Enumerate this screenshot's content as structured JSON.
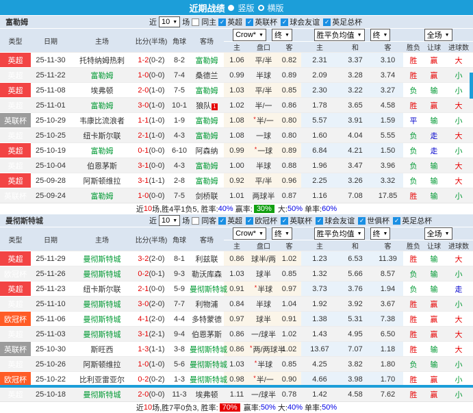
{
  "title_bar": {
    "title": "近期战绩",
    "radio_vertical": "竖版",
    "radio_horizontal": "横版"
  },
  "filter": {
    "near": "近",
    "count": "10",
    "games_label": "场"
  },
  "dropdowns": {
    "company": "Crow*",
    "asia_period": "终",
    "euro_avg": "胜平负均值",
    "euro_period": "终",
    "scope": "全场"
  },
  "columns": {
    "type": "类型",
    "date": "日期",
    "home": "主场",
    "score": "比分(半场)",
    "corner": "角球",
    "away": "客场",
    "asia_home": "主",
    "asia_line": "盘口",
    "asia_away": "客",
    "euro_home": "主",
    "euro_draw": "和",
    "euro_away": "客",
    "res_wl": "胜负",
    "res_let": "让球",
    "res_goal": "进球数"
  },
  "sections": [
    {
      "team": "富勒姆",
      "same_label": "同主",
      "leagues": [
        "英超",
        "英联杯",
        "球会友谊",
        "英足总杯"
      ],
      "rows": [
        {
          "type": "英超",
          "tc": "t-red",
          "date": "25-11-30",
          "home": "托特纳姆热刺",
          "hs": false,
          "score": "1-2",
          "half": "(0-2)",
          "corner": "8-2",
          "away": "富勒姆",
          "as": true,
          "badge": "",
          "ah": "1.06",
          "star": false,
          "line": "平/半",
          "aa": "0.82",
          "eh": "2.31",
          "ed": "3.37",
          "ea": "3.10",
          "w": [
            "胜",
            "r"
          ],
          "l": [
            "赢",
            "r"
          ],
          "g": [
            "大",
            "r"
          ]
        },
        {
          "type": "英超",
          "tc": "t-red",
          "date": "25-11-22",
          "home": "富勒姆",
          "hs": true,
          "score": "1-0",
          "half": "(0-0)",
          "corner": "7-4",
          "away": "桑德兰",
          "as": false,
          "badge": "",
          "ah": "0.99",
          "star": false,
          "line": "半球",
          "aa": "0.89",
          "eh": "2.09",
          "ed": "3.28",
          "ea": "3.74",
          "w": [
            "胜",
            "r"
          ],
          "l": [
            "赢",
            "r"
          ],
          "g": [
            "小",
            "g"
          ]
        },
        {
          "type": "英超",
          "tc": "t-red",
          "date": "25-11-08",
          "home": "埃弗顿",
          "hs": false,
          "score": "2-0",
          "half": "(1-0)",
          "corner": "7-5",
          "away": "富勒姆",
          "as": true,
          "badge": "",
          "ah": "1.03",
          "star": false,
          "line": "平/半",
          "aa": "0.85",
          "eh": "2.30",
          "ed": "3.22",
          "ea": "3.27",
          "w": [
            "负",
            "g"
          ],
          "l": [
            "输",
            "g"
          ],
          "g": [
            "小",
            "g"
          ]
        },
        {
          "type": "英超",
          "tc": "t-red",
          "date": "25-11-01",
          "home": "富勒姆",
          "hs": true,
          "score": "3-0",
          "half": "(1-0)",
          "corner": "10-1",
          "away": "狼队",
          "as": false,
          "badge": "1",
          "ah": "1.02",
          "star": false,
          "line": "半/一",
          "aa": "0.86",
          "eh": "1.78",
          "ed": "3.65",
          "ea": "4.58",
          "w": [
            "胜",
            "r"
          ],
          "l": [
            "赢",
            "r"
          ],
          "g": [
            "大",
            "r"
          ]
        },
        {
          "type": "英联杯",
          "tc": "t-gray",
          "date": "25-10-29",
          "home": "韦康比流浪者",
          "hs": false,
          "score": "1-1",
          "half": "(1-0)",
          "corner": "1-9",
          "away": "富勒姆",
          "as": true,
          "badge": "",
          "ah": "1.08",
          "star": true,
          "line": "半/一",
          "aa": "0.80",
          "eh": "5.57",
          "ed": "3.91",
          "ea": "1.59",
          "w": [
            "平",
            "b"
          ],
          "l": [
            "输",
            "g"
          ],
          "g": [
            "小",
            "g"
          ]
        },
        {
          "type": "英超",
          "tc": "t-red",
          "date": "25-10-25",
          "home": "纽卡斯尔联",
          "hs": false,
          "score": "2-1",
          "half": "(1-0)",
          "corner": "4-3",
          "away": "富勒姆",
          "as": true,
          "badge": "",
          "ah": "1.08",
          "star": false,
          "line": "一球",
          "aa": "0.80",
          "eh": "1.60",
          "ed": "4.04",
          "ea": "5.55",
          "w": [
            "负",
            "g"
          ],
          "l": [
            "走",
            "b"
          ],
          "g": [
            "大",
            "r"
          ]
        },
        {
          "type": "英超",
          "tc": "t-red",
          "date": "25-10-19",
          "home": "富勒姆",
          "hs": true,
          "score": "0-1",
          "half": "(0-0)",
          "corner": "6-10",
          "away": "阿森纳",
          "as": false,
          "badge": "",
          "ah": "0.99",
          "star": true,
          "line": "一球",
          "aa": "0.89",
          "eh": "6.84",
          "ed": "4.21",
          "ea": "1.50",
          "w": [
            "负",
            "g"
          ],
          "l": [
            "走",
            "b"
          ],
          "g": [
            "小",
            "g"
          ]
        },
        {
          "type": "英超",
          "tc": "t-red",
          "date": "25-10-04",
          "home": "伯恩茅斯",
          "hs": false,
          "score": "3-1",
          "half": "(0-0)",
          "corner": "4-3",
          "away": "富勒姆",
          "as": true,
          "badge": "",
          "ah": "1.00",
          "star": false,
          "line": "半球",
          "aa": "0.88",
          "eh": "1.96",
          "ed": "3.47",
          "ea": "3.96",
          "w": [
            "负",
            "g"
          ],
          "l": [
            "输",
            "g"
          ],
          "g": [
            "大",
            "r"
          ]
        },
        {
          "type": "英超",
          "tc": "t-red",
          "date": "25-09-28",
          "home": "阿斯顿维拉",
          "hs": false,
          "score": "3-1",
          "half": "(1-1)",
          "corner": "2-8",
          "away": "富勒姆",
          "as": true,
          "badge": "",
          "ah": "0.92",
          "star": false,
          "line": "平/半",
          "aa": "0.96",
          "eh": "2.25",
          "ed": "3.26",
          "ea": "3.32",
          "w": [
            "负",
            "g"
          ],
          "l": [
            "输",
            "g"
          ],
          "g": [
            "大",
            "r"
          ]
        },
        {
          "type": "英联杯",
          "tc": "t-gray",
          "date": "25-09-24",
          "home": "富勒姆",
          "hs": true,
          "score": "1-0",
          "half": "(0-0)",
          "corner": "7-5",
          "away": "剑桥联",
          "as": false,
          "badge": "",
          "ah": "1.01",
          "star": false,
          "line": "两球半",
          "aa": "0.87",
          "eh": "1.16",
          "ed": "7.08",
          "ea": "17.85",
          "w": [
            "胜",
            "r"
          ],
          "l": [
            "输",
            "g"
          ],
          "g": [
            "小",
            "g"
          ]
        }
      ],
      "summary": [
        {
          "t": "近",
          "s": "p"
        },
        {
          "t": "10",
          "s": "r"
        },
        {
          "t": "场,胜4平1负5, 胜率:",
          "s": "p"
        },
        {
          "t": "40%",
          "s": "b"
        },
        {
          "t": " 赢率:",
          "s": "p"
        },
        {
          "t": "30%",
          "s": "boxg"
        },
        {
          "t": " 大:",
          "s": "p"
        },
        {
          "t": "50%",
          "s": "b"
        },
        {
          "t": " 单率:",
          "s": "p"
        },
        {
          "t": "60%",
          "s": "b"
        }
      ]
    },
    {
      "team": "曼彻斯特城",
      "same_label": "同客",
      "leagues": [
        "英超",
        "欧冠杯",
        "英联杯",
        "球会友谊",
        "世俱杯",
        "英足总杯"
      ],
      "rows": [
        {
          "type": "英超",
          "tc": "t-red",
          "date": "25-11-29",
          "home": "曼彻斯特城",
          "hs": true,
          "score": "3-2",
          "half": "(2-0)",
          "corner": "8-1",
          "away": "利兹联",
          "as": false,
          "badge": "",
          "ah": "0.86",
          "star": false,
          "line": "球半/两",
          "aa": "1.02",
          "eh": "1.23",
          "ed": "6.53",
          "ea": "11.39",
          "w": [
            "胜",
            "r"
          ],
          "l": [
            "输",
            "g"
          ],
          "g": [
            "大",
            "r"
          ]
        },
        {
          "type": "欧冠杯",
          "tc": "t-orange",
          "date": "25-11-26",
          "home": "曼彻斯特城",
          "hs": true,
          "score": "0-2",
          "half": "(0-1)",
          "corner": "9-3",
          "away": "勒沃库森",
          "as": false,
          "badge": "",
          "ah": "1.03",
          "star": false,
          "line": "球半",
          "aa": "0.85",
          "eh": "1.32",
          "ed": "5.66",
          "ea": "8.57",
          "w": [
            "负",
            "g"
          ],
          "l": [
            "输",
            "g"
          ],
          "g": [
            "小",
            "g"
          ]
        },
        {
          "type": "英超",
          "tc": "t-red",
          "date": "25-11-23",
          "home": "纽卡斯尔联",
          "hs": false,
          "score": "2-1",
          "half": "(0-0)",
          "corner": "5-9",
          "away": "曼彻斯特城",
          "as": true,
          "badge": "",
          "ah": "0.91",
          "star": true,
          "line": "半球",
          "aa": "0.97",
          "eh": "3.73",
          "ed": "3.76",
          "ea": "1.94",
          "w": [
            "负",
            "g"
          ],
          "l": [
            "输",
            "g"
          ],
          "g": [
            "走",
            "b"
          ]
        },
        {
          "type": "英超",
          "tc": "t-red",
          "date": "25-11-10",
          "home": "曼彻斯特城",
          "hs": true,
          "score": "3-0",
          "half": "(2-0)",
          "corner": "7-7",
          "away": "利物浦",
          "as": false,
          "badge": "",
          "ah": "0.84",
          "star": false,
          "line": "半球",
          "aa": "1.04",
          "eh": "1.92",
          "ed": "3.92",
          "ea": "3.67",
          "w": [
            "胜",
            "r"
          ],
          "l": [
            "赢",
            "r"
          ],
          "g": [
            "小",
            "g"
          ]
        },
        {
          "type": "欧冠杯",
          "tc": "t-orange",
          "date": "25-11-06",
          "home": "曼彻斯特城",
          "hs": true,
          "score": "4-1",
          "half": "(2-0)",
          "corner": "4-4",
          "away": "多特蒙德",
          "as": false,
          "badge": "",
          "ah": "0.97",
          "star": false,
          "line": "球半",
          "aa": "0.91",
          "eh": "1.38",
          "ed": "5.31",
          "ea": "7.38",
          "w": [
            "胜",
            "r"
          ],
          "l": [
            "赢",
            "r"
          ],
          "g": [
            "大",
            "r"
          ]
        },
        {
          "type": "英超",
          "tc": "t-red",
          "date": "25-11-03",
          "home": "曼彻斯特城",
          "hs": true,
          "score": "3-1",
          "half": "(2-1)",
          "corner": "9-4",
          "away": "伯恩茅斯",
          "as": false,
          "badge": "",
          "ah": "0.86",
          "star": false,
          "line": "一/球半",
          "aa": "1.02",
          "eh": "1.43",
          "ed": "4.95",
          "ea": "6.50",
          "w": [
            "胜",
            "r"
          ],
          "l": [
            "赢",
            "r"
          ],
          "g": [
            "大",
            "r"
          ]
        },
        {
          "type": "英联杯",
          "tc": "t-gray",
          "date": "25-10-30",
          "home": "斯旺西",
          "hs": false,
          "score": "1-3",
          "half": "(1-1)",
          "corner": "3-8",
          "away": "曼彻斯特城",
          "as": true,
          "badge": "",
          "ah": "0.86",
          "star": true,
          "line": "两/两球半",
          "aa": "1.02",
          "eh": "13.67",
          "ed": "7.07",
          "ea": "1.18",
          "w": [
            "胜",
            "r"
          ],
          "l": [
            "输",
            "g"
          ],
          "g": [
            "大",
            "r"
          ]
        },
        {
          "type": "英超",
          "tc": "t-red",
          "date": "25-10-26",
          "home": "阿斯顿维拉",
          "hs": false,
          "score": "1-0",
          "half": "(1-0)",
          "corner": "5-6",
          "away": "曼彻斯特城",
          "as": true,
          "badge": "",
          "ah": "1.03",
          "star": true,
          "line": "半球",
          "aa": "0.85",
          "eh": "4.25",
          "ed": "3.82",
          "ea": "1.80",
          "w": [
            "负",
            "g"
          ],
          "l": [
            "输",
            "g"
          ],
          "g": [
            "小",
            "g"
          ]
        },
        {
          "type": "欧冠杯",
          "tc": "t-orange",
          "date": "25-10-22",
          "home": "比利亚雷亚尔",
          "hs": false,
          "score": "0-2",
          "half": "(0-2)",
          "corner": "1-3",
          "away": "曼彻斯特城",
          "as": true,
          "badge": "",
          "ah": "0.98",
          "star": true,
          "line": "半/一",
          "aa": "0.90",
          "eh": "4.66",
          "ed": "3.98",
          "ea": "1.70",
          "w": [
            "胜",
            "r"
          ],
          "l": [
            "赢",
            "r"
          ],
          "g": [
            "小",
            "g"
          ]
        },
        {
          "type": "英超",
          "tc": "t-red",
          "date": "25-10-18",
          "home": "曼彻斯特城",
          "hs": true,
          "score": "2-0",
          "half": "(0-0)",
          "corner": "11-3",
          "away": "埃弗顿",
          "as": false,
          "badge": "",
          "ah": "1.11",
          "star": false,
          "line": "一/球半",
          "aa": "0.78",
          "eh": "1.42",
          "ed": "4.58",
          "ea": "7.62",
          "w": [
            "胜",
            "r"
          ],
          "l": [
            "赢",
            "r"
          ],
          "g": [
            "小",
            "g"
          ]
        }
      ],
      "summary": [
        {
          "t": "近",
          "s": "p"
        },
        {
          "t": "10",
          "s": "r"
        },
        {
          "t": "场,胜7平0负3, 胜率:",
          "s": "p"
        },
        {
          "t": "70%",
          "s": "boxr"
        },
        {
          "t": " 赢率:",
          "s": "p"
        },
        {
          "t": "50%",
          "s": "b"
        },
        {
          "t": " 大:",
          "s": "p"
        },
        {
          "t": "40%",
          "s": "b"
        },
        {
          "t": " 单率:",
          "s": "p"
        },
        {
          "t": "50%",
          "s": "b"
        }
      ]
    }
  ]
}
